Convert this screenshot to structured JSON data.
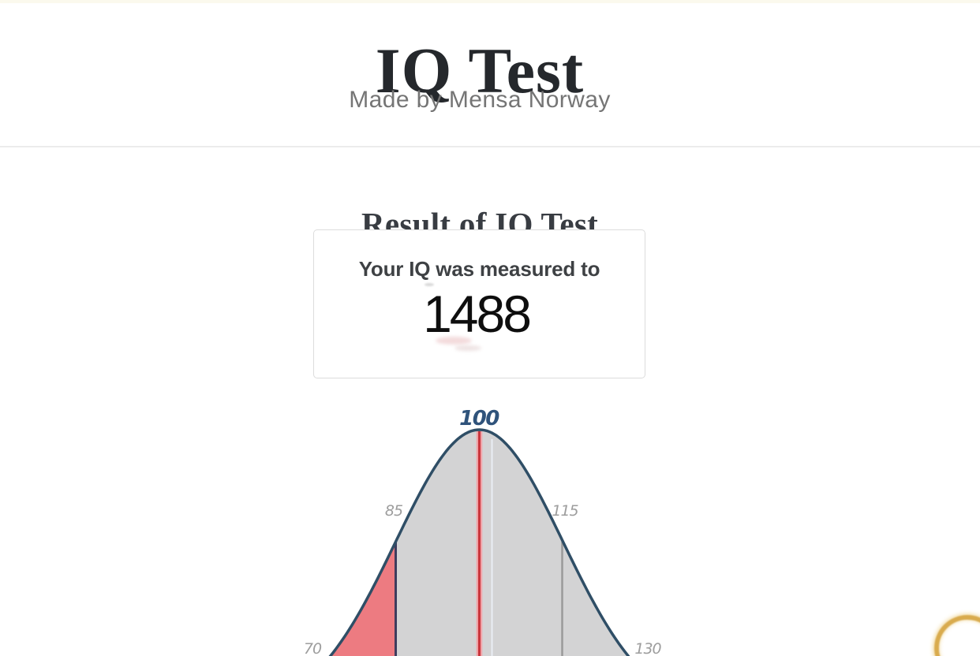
{
  "page": {
    "title": "IQ Test",
    "subtitle": "Made by Mensa Norway",
    "background": "#ffffff"
  },
  "result": {
    "heading": "Result of IQ Test",
    "card_label": "Your IQ was measured to",
    "score": "1488"
  },
  "chart_data": {
    "type": "area",
    "title": "",
    "distribution": "normal",
    "mean": 100,
    "sd": 15,
    "x_ticks": [
      "70",
      "85",
      "100",
      "115",
      "130"
    ],
    "marked_mean": "100",
    "regions": [
      {
        "range": "70-85",
        "color": "#ed7b81"
      },
      {
        "range": "85-130",
        "color": "#d3d3d4"
      }
    ],
    "colors": {
      "curve": "#2f4e66",
      "mean_line": "#c9353c",
      "mean_line_glow": "#efa3a7",
      "ghost_line": "#e9edf3",
      "sd_line_left": "#3e3c5e",
      "sd_line_right": "#9a9a9a",
      "mean_label": "#2f537b",
      "tick_label": "#9d9d9d"
    }
  },
  "decorations": {
    "corner_ring_color": "#d9ab4e"
  }
}
